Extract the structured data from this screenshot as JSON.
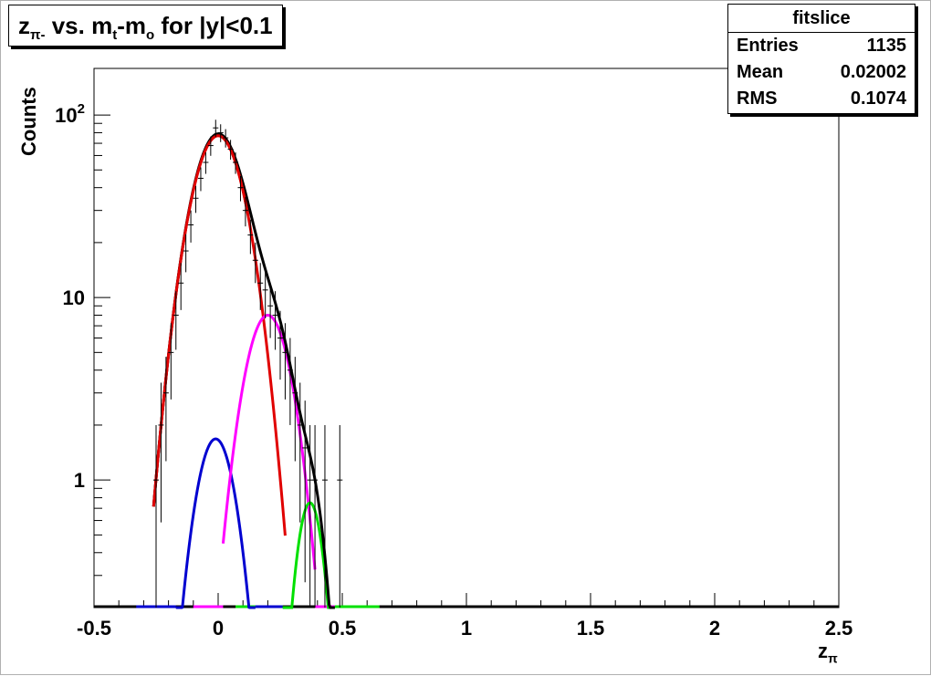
{
  "title": {
    "main": "z",
    "sub": "π-",
    "rest": " vs. m",
    "sub2": "t",
    "rest2": "-m",
    "sub3": "o",
    "rest3": " for |y|<0.1"
  },
  "stats_box": {
    "name": "fitslice",
    "rows": [
      {
        "label": "Entries",
        "value": "1135"
      },
      {
        "label": "Mean",
        "value": "0.02002"
      },
      {
        "label": "RMS",
        "value": "0.1074"
      }
    ]
  },
  "colors": {
    "total": "#000000",
    "red": "#e00000",
    "blue": "#0000d0",
    "magenta": "#ff00ff",
    "green": "#00e000",
    "data": "#000000"
  },
  "chart_data": {
    "type": "scatter",
    "xlabel": "z",
    "xlabel_sub": "π",
    "ylabel": "Counts",
    "xlim": [
      -0.5,
      2.5
    ],
    "ylim": [
      0.2,
      180
    ],
    "yscale": "log",
    "grid": false,
    "xticks": [
      "-0.5",
      "0",
      "0.5",
      "1",
      "1.5",
      "2",
      "2.5"
    ],
    "yticks": [
      {
        "value": 1,
        "label": "1"
      },
      {
        "value": 10,
        "label": "10"
      },
      {
        "value": 100,
        "label": "10",
        "sup": "2"
      }
    ],
    "points": [
      {
        "x": -0.25,
        "y": 1.0
      },
      {
        "x": -0.23,
        "y": 2.0
      },
      {
        "x": -0.21,
        "y": 3.0
      },
      {
        "x": -0.19,
        "y": 5.0
      },
      {
        "x": -0.17,
        "y": 8.0
      },
      {
        "x": -0.15,
        "y": 12.0
      },
      {
        "x": -0.13,
        "y": 18.0
      },
      {
        "x": -0.11,
        "y": 25.0
      },
      {
        "x": -0.09,
        "y": 35.0
      },
      {
        "x": -0.07,
        "y": 45.0
      },
      {
        "x": -0.05,
        "y": 55.0
      },
      {
        "x": -0.03,
        "y": 68.0
      },
      {
        "x": -0.01,
        "y": 85.0
      },
      {
        "x": 0.01,
        "y": 80.0
      },
      {
        "x": 0.03,
        "y": 75.0
      },
      {
        "x": 0.05,
        "y": 65.0
      },
      {
        "x": 0.07,
        "y": 55.0
      },
      {
        "x": 0.09,
        "y": 40.0
      },
      {
        "x": 0.11,
        "y": 30.0
      },
      {
        "x": 0.13,
        "y": 22.0
      },
      {
        "x": 0.15,
        "y": 16.0
      },
      {
        "x": 0.17,
        "y": 12.0
      },
      {
        "x": 0.19,
        "y": 11.0
      },
      {
        "x": 0.21,
        "y": 9.0
      },
      {
        "x": 0.23,
        "y": 8.0
      },
      {
        "x": 0.25,
        "y": 6.0
      },
      {
        "x": 0.27,
        "y": 5.0
      },
      {
        "x": 0.29,
        "y": 4.0
      },
      {
        "x": 0.31,
        "y": 3.0
      },
      {
        "x": 0.33,
        "y": 2.0
      },
      {
        "x": 0.35,
        "y": 1.5
      },
      {
        "x": 0.37,
        "y": 1.0
      },
      {
        "x": 0.39,
        "y": 1.0
      },
      {
        "x": 0.43,
        "y": 1.0
      },
      {
        "x": 0.49,
        "y": 1.0
      }
    ],
    "curves": [
      {
        "color": "red",
        "amp": 77,
        "mean": 0.0,
        "sigma": 0.085,
        "xmin": -0.26,
        "xmax": 0.27
      },
      {
        "color": "blue",
        "amp": 1.68,
        "mean": -0.01,
        "sigma": 0.065,
        "xmin": -0.17,
        "xmax": 0.15
      },
      {
        "color": "magenta",
        "amp": 8.0,
        "mean": 0.2,
        "sigma": 0.075,
        "xmin": 0.02,
        "xmax": 0.39
      },
      {
        "color": "green",
        "amp": 0.75,
        "mean": 0.37,
        "sigma": 0.045,
        "xmin": 0.26,
        "xmax": 0.47
      },
      {
        "color": "total",
        "amp": 0,
        "mean": 0,
        "sigma": 0,
        "xmin": -0.26,
        "xmax": 0.47
      }
    ]
  }
}
